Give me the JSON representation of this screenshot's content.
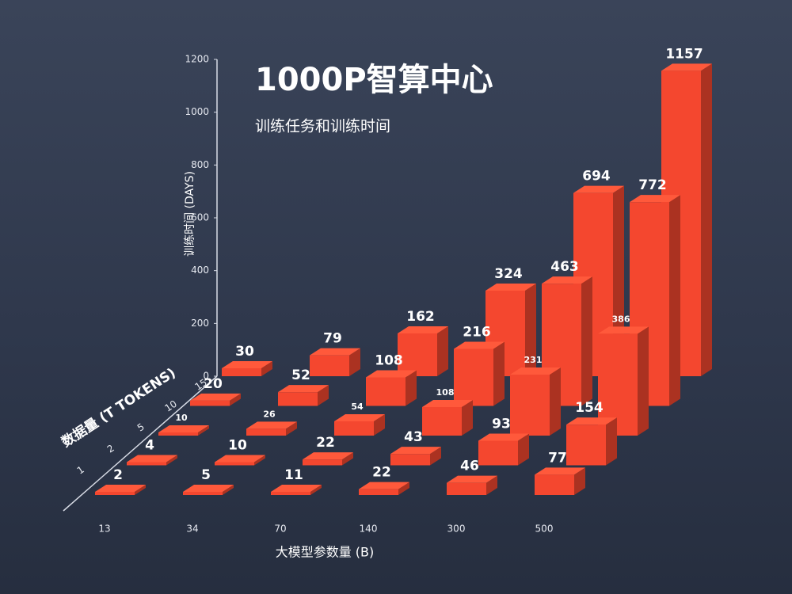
{
  "chart_data": {
    "type": "bar3d",
    "title": "1000P智算中心",
    "subtitle": "训练任务和训练时间",
    "y_label": "训练时间 (DAYS)",
    "z_label": "数据量 (T TOKENS)",
    "x_label": "大模型参数量 (B)",
    "categories": [
      "13",
      "34",
      "70",
      "140",
      "300",
      "500"
    ],
    "ylim": [
      0,
      1200
    ],
    "yticks": [
      0,
      200,
      400,
      600,
      800,
      1000,
      1200
    ],
    "series": [
      {
        "name": "1",
        "color": "#f4472f",
        "values": [
          2,
          5,
          11,
          22,
          46,
          77
        ]
      },
      {
        "name": "2",
        "color": "#f4472f",
        "values": [
          4,
          10,
          22,
          43,
          93,
          154
        ]
      },
      {
        "name": "5",
        "color": "#f4472f",
        "values": [
          10,
          26,
          54,
          108,
          231,
          386
        ]
      },
      {
        "name": "10",
        "color": "#f4472f",
        "values": [
          20,
          52,
          108,
          216,
          463,
          772
        ]
      },
      {
        "name": "15",
        "color": "#f4472f",
        "values": [
          30,
          79,
          162,
          324,
          694,
          1157
        ]
      }
    ]
  }
}
